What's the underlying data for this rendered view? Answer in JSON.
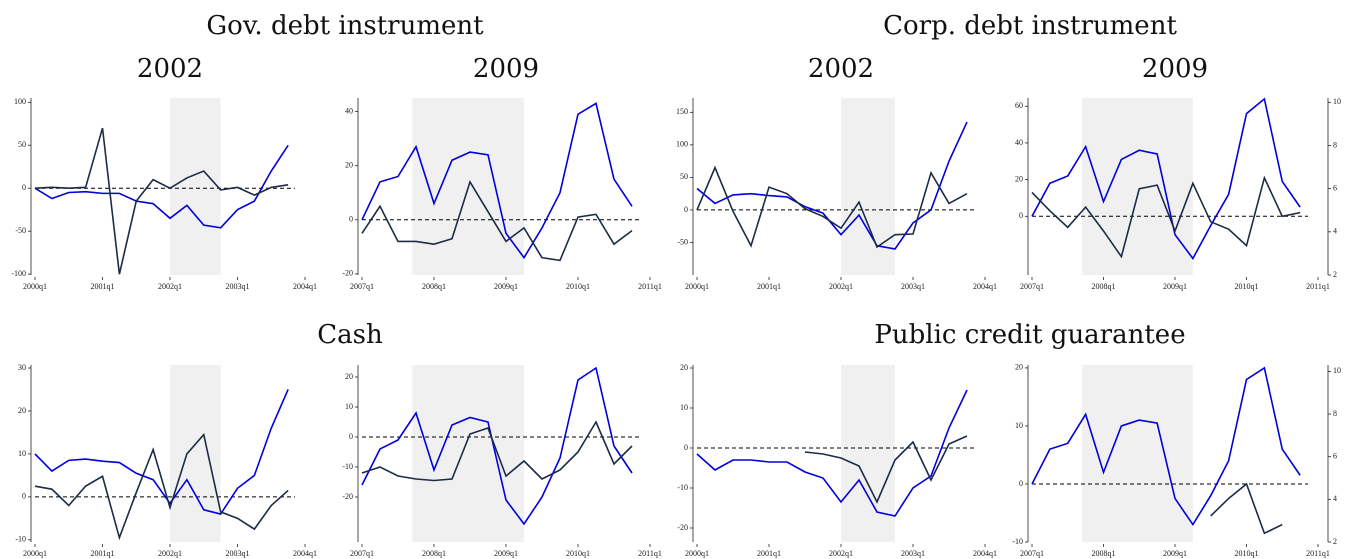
{
  "panel_titles": [
    "Gov. debt instrument",
    "Corp. debt instrument",
    "Cash",
    "Public credit guarantee"
  ],
  "chart_data": [
    {
      "type": "line",
      "title": "2002",
      "x": [
        2000,
        2000.25,
        2000.5,
        2000.75,
        2001,
        2001.25,
        2001.5,
        2001.75,
        2002,
        2002.25,
        2002.5,
        2002.75,
        2003,
        2003.25,
        2003.5,
        2003.75
      ],
      "xlim": [
        2000,
        2004
      ],
      "xticks": [
        {
          "value": 2000,
          "label": "2000q1"
        },
        {
          "value": 2001,
          "label": "2001q1"
        },
        {
          "value": 2002,
          "label": "2002q1"
        },
        {
          "value": 2003,
          "label": "2003q1"
        },
        {
          "value": 2004,
          "label": "2004q1"
        }
      ],
      "ylim": [
        -101,
        105
      ],
      "yticks": [
        -100,
        -50,
        0,
        50,
        100
      ],
      "shade": [
        2002,
        2002.75
      ],
      "refline": 0,
      "series": [
        {
          "color": "#0000dd",
          "values": [
            0,
            -12,
            -5,
            -4,
            -6,
            -6,
            -15,
            -18,
            -35,
            -20,
            -43,
            -46,
            -25,
            -15,
            20,
            50
          ]
        },
        {
          "color": "#1c2b48",
          "values": [
            0,
            1,
            0,
            1,
            70,
            -100,
            -15,
            10,
            0,
            12,
            20,
            -2,
            1,
            -8,
            1,
            4
          ]
        }
      ]
    },
    {
      "type": "line",
      "title": "2009",
      "x": [
        2007,
        2007.25,
        2007.5,
        2007.75,
        2008,
        2008.25,
        2008.5,
        2008.75,
        2009,
        2009.25,
        2009.5,
        2009.75,
        2010,
        2010.25,
        2010.5,
        2010.75
      ],
      "xlim": [
        2007,
        2011
      ],
      "xticks": [
        {
          "value": 2007,
          "label": "2007q1"
        },
        {
          "value": 2008,
          "label": "2008q1"
        },
        {
          "value": 2009,
          "label": "2009q1"
        },
        {
          "value": 2010,
          "label": "2010q1"
        },
        {
          "value": 2011,
          "label": "2011q1"
        }
      ],
      "ylim": [
        -20.4,
        45
      ],
      "yticks": [
        -20,
        0,
        20,
        40
      ],
      "shade": [
        2007.7,
        2009.25
      ],
      "refline": 0,
      "series": [
        {
          "color": "#0000dd",
          "values": [
            0,
            14,
            16,
            27,
            6,
            22,
            25,
            24,
            -5,
            -14,
            -3,
            10,
            39,
            43,
            15,
            5
          ]
        },
        {
          "color": "#1c2b48",
          "values": [
            -5,
            5,
            -8,
            -8,
            -9,
            -7,
            14,
            3,
            -8,
            -3,
            -14,
            -15,
            1,
            2,
            -9,
            -4
          ]
        }
      ]
    },
    {
      "type": "line",
      "title": "2002",
      "x": [
        2000,
        2000.25,
        2000.5,
        2000.75,
        2001,
        2001.25,
        2001.5,
        2001.75,
        2002,
        2002.25,
        2002.5,
        2002.75,
        2003,
        2003.25,
        2003.5,
        2003.75
      ],
      "xlim": [
        2000,
        2004
      ],
      "xticks": [
        {
          "value": 2000,
          "label": "2000q1"
        },
        {
          "value": 2001,
          "label": "2001q1"
        },
        {
          "value": 2002,
          "label": "2002q1"
        },
        {
          "value": 2003,
          "label": "2003q1"
        },
        {
          "value": 2004,
          "label": "2004q1"
        }
      ],
      "ylim": [
        -100,
        172
      ],
      "yticks": [
        -50,
        0,
        50,
        100,
        150
      ],
      "shade": [
        2002,
        2002.75
      ],
      "refline": 0,
      "series": [
        {
          "color": "#0000dd",
          "values": [
            33,
            10,
            23,
            25,
            22,
            20,
            5,
            -5,
            -38,
            -8,
            -55,
            -60,
            -20,
            0,
            75,
            135
          ]
        },
        {
          "color": "#1c2b48",
          "values": [
            0,
            65,
            -2,
            -55,
            35,
            25,
            2,
            -10,
            -28,
            12,
            -57,
            -38,
            -37,
            57,
            10,
            25
          ]
        }
      ]
    },
    {
      "type": "line",
      "title": "2009",
      "x": [
        2007,
        2007.25,
        2007.5,
        2007.75,
        2008,
        2008.25,
        2008.5,
        2008.75,
        2009,
        2009.25,
        2009.5,
        2009.75,
        2010,
        2010.25,
        2010.5,
        2010.75
      ],
      "xlim": [
        2007,
        2011
      ],
      "xticks": [
        {
          "value": 2007,
          "label": "2007q1"
        },
        {
          "value": 2008,
          "label": "2008q1"
        },
        {
          "value": 2009,
          "label": "2009q1"
        },
        {
          "value": 2010,
          "label": "2010q1"
        },
        {
          "value": 2011,
          "label": "2011q1"
        }
      ],
      "ylim": [
        -32,
        64.5
      ],
      "yticks": [
        0,
        20,
        40,
        60
      ],
      "y2lim": [
        2,
        10.2
      ],
      "y2ticks": [
        2,
        4,
        6,
        8,
        10
      ],
      "shade": [
        2007.7,
        2009.25
      ],
      "refline": 0,
      "series": [
        {
          "color": "#0000dd",
          "values": [
            0,
            18,
            22,
            38,
            8,
            31,
            36,
            34,
            -10,
            -23,
            -5,
            12,
            56,
            64,
            19,
            5
          ]
        },
        {
          "color": "#1c2b48",
          "values": [
            13,
            3,
            -6,
            5,
            -8,
            -22,
            15,
            17,
            -8,
            18,
            -3,
            -7,
            -16,
            21,
            0,
            2
          ]
        }
      ]
    },
    {
      "type": "line",
      "x": [
        2000,
        2000.25,
        2000.5,
        2000.75,
        2001,
        2001.25,
        2001.5,
        2001.75,
        2002,
        2002.25,
        2002.5,
        2002.75,
        2003,
        2003.25,
        2003.5,
        2003.75
      ],
      "xlim": [
        2000,
        2004
      ],
      "xticks": [
        {
          "value": 2000,
          "label": "2000q1"
        },
        {
          "value": 2001,
          "label": "2001q1"
        },
        {
          "value": 2002,
          "label": "2002q1"
        },
        {
          "value": 2003,
          "label": "2003q1"
        },
        {
          "value": 2004,
          "label": "2004q1"
        }
      ],
      "ylim": [
        -10.5,
        30.7
      ],
      "yticks": [
        -10,
        0,
        10,
        20,
        30
      ],
      "shade": [
        2002,
        2002.75
      ],
      "refline": 0,
      "series": [
        {
          "color": "#0000dd",
          "values": [
            10,
            6,
            8.5,
            8.8,
            8.3,
            8,
            5.5,
            4,
            -1.5,
            4,
            -3,
            -4,
            2,
            5,
            16,
            25
          ]
        },
        {
          "color": "#1c2b48",
          "values": [
            2.5,
            1.8,
            -2,
            2.5,
            4.8,
            -9.5,
            1,
            11,
            -2.5,
            10,
            14.5,
            -3.5,
            -5,
            -7.5,
            -2,
            1.5
          ]
        }
      ]
    },
    {
      "type": "line",
      "x": [
        2007,
        2007.25,
        2007.5,
        2007.75,
        2008,
        2008.25,
        2008.5,
        2008.75,
        2009,
        2009.25,
        2009.5,
        2009.75,
        2010,
        2010.25,
        2010.5,
        2010.75
      ],
      "xlim": [
        2007,
        2011
      ],
      "xticks": [
        {
          "value": 2007,
          "label": "2007q1"
        },
        {
          "value": 2008,
          "label": "2008q1"
        },
        {
          "value": 2009,
          "label": "2009q1"
        },
        {
          "value": 2010,
          "label": "2010q1"
        },
        {
          "value": 2011,
          "label": "2011q1"
        }
      ],
      "ylim": [
        -35,
        24
      ],
      "yticks": [
        -20,
        -10,
        0,
        10,
        20
      ],
      "shade": [
        2007.7,
        2009.25
      ],
      "refline": 0,
      "series": [
        {
          "color": "#0000dd",
          "values": [
            -16,
            -4,
            -1,
            8,
            -11,
            4,
            6.5,
            5,
            -21,
            -29,
            -20,
            -7,
            19,
            23,
            -3,
            -12
          ]
        },
        {
          "color": "#1c2b48",
          "values": [
            -12,
            -10,
            -13,
            -14,
            -14.5,
            -14,
            1,
            3,
            -13,
            -8,
            -14,
            -11,
            -5,
            5,
            -9,
            -3
          ]
        }
      ]
    },
    {
      "type": "line",
      "x": [
        2000,
        2000.25,
        2000.5,
        2000.75,
        2001,
        2001.25,
        2001.5,
        2001.75,
        2002,
        2002.25,
        2002.5,
        2002.75,
        2003,
        2003.25,
        2003.5,
        2003.75
      ],
      "xlim": [
        2000,
        2004
      ],
      "xticks": [
        {
          "value": 2000,
          "label": "2000q1"
        },
        {
          "value": 2001,
          "label": "2001q1"
        },
        {
          "value": 2002,
          "label": "2002q1"
        },
        {
          "value": 2003,
          "label": "2003q1"
        },
        {
          "value": 2004,
          "label": "2004q1"
        }
      ],
      "ylim": [
        -23.5,
        20.75
      ],
      "yticks": [
        -20,
        -10,
        0,
        10,
        20
      ],
      "shade": [
        2002,
        2002.75
      ],
      "refline": 0,
      "series": [
        {
          "color": "#0000dd",
          "values": [
            -1.5,
            -5.5,
            -3,
            -3,
            -3.5,
            -3.5,
            -6,
            -7.5,
            -13.5,
            -8,
            -16,
            -17,
            -10,
            -7,
            5,
            14.5
          ]
        },
        {
          "color": "#1c2b48",
          "values": [
            null,
            null,
            null,
            null,
            null,
            null,
            -1,
            -1.5,
            -2.5,
            -4.5,
            -13.5,
            -3,
            1.5,
            -8,
            1,
            3
          ]
        }
      ]
    },
    {
      "type": "line",
      "x": [
        2007,
        2007.25,
        2007.5,
        2007.75,
        2008,
        2008.25,
        2008.5,
        2008.75,
        2009,
        2009.25,
        2009.5,
        2009.75,
        2010,
        2010.25,
        2010.5,
        2010.75
      ],
      "xlim": [
        2007,
        2011
      ],
      "xticks": [
        {
          "value": 2007,
          "label": "2007q1"
        },
        {
          "value": 2008,
          "label": "2008q1"
        },
        {
          "value": 2009,
          "label": "2009q1"
        },
        {
          "value": 2010,
          "label": "2010q1"
        },
        {
          "value": 2011,
          "label": "2011q1"
        }
      ],
      "ylim": [
        -10,
        20.5
      ],
      "yticks": [
        -10,
        0,
        10,
        20
      ],
      "y2lim": [
        2,
        10.3
      ],
      "y2ticks": [
        2,
        4,
        6,
        8,
        10
      ],
      "shade": [
        2007.7,
        2009.25
      ],
      "refline": 0,
      "series": [
        {
          "color": "#0000dd",
          "values": [
            0,
            6,
            7,
            12,
            2,
            10,
            11,
            10.5,
            -2.5,
            -7,
            -2,
            4,
            18,
            20,
            6,
            1.5
          ]
        },
        {
          "color": "#1c2b48",
          "values": [
            null,
            null,
            null,
            null,
            null,
            null,
            null,
            null,
            null,
            null,
            -5.5,
            -2.5,
            0,
            -8.5,
            -7,
            null
          ]
        }
      ]
    }
  ]
}
